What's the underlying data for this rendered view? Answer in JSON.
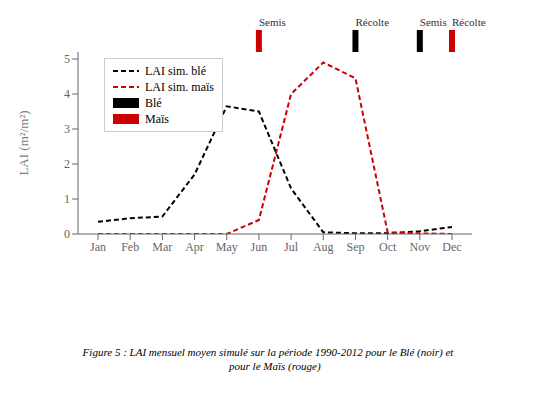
{
  "chart_data": {
    "type": "line",
    "categories": [
      "Jan",
      "Feb",
      "Mar",
      "Apr",
      "May",
      "Jun",
      "Jul",
      "Aug",
      "Sep",
      "Oct",
      "Nov",
      "Dec"
    ],
    "series": [
      {
        "name": "LAI sim. blé",
        "color": "#000000",
        "line_style": "dashed",
        "values": [
          0.35,
          0.45,
          0.5,
          1.7,
          3.65,
          3.5,
          1.3,
          0.05,
          0.02,
          0.02,
          0.08,
          0.2
        ]
      },
      {
        "name": "LAI sim. maïs",
        "color": "#cc0000",
        "line_style": "dashed",
        "values": [
          0.0,
          0.0,
          0.0,
          0.0,
          0.0,
          0.4,
          4.0,
          4.9,
          4.45,
          0.05,
          0.02,
          0.0
        ]
      }
    ],
    "legend_patches": [
      {
        "name": "Blé",
        "color": "#000000"
      },
      {
        "name": "Maïs",
        "color": "#cc0000"
      }
    ],
    "ylabel": "LAI (m²/m²)",
    "ylim": [
      0,
      5.2
    ],
    "yticks": [
      0,
      1,
      2,
      3,
      4,
      5
    ],
    "legend": "upper left",
    "annotations": [
      {
        "x": "Jun",
        "text": "Semis",
        "color": "#cc0000"
      },
      {
        "x": "Sep",
        "text": "Récolte",
        "color": "#000000"
      },
      {
        "x": "Nov",
        "text": "Semis",
        "color": "#000000"
      },
      {
        "x": "Dec",
        "text": "Récolte",
        "color": "#cc0000"
      }
    ],
    "caption": [
      "Figure 5 : LAI mensuel moyen simulé sur la période 1990-2012 pour le Blé (noir) et",
      "     pour le Maïs (rouge)"
    ]
  }
}
